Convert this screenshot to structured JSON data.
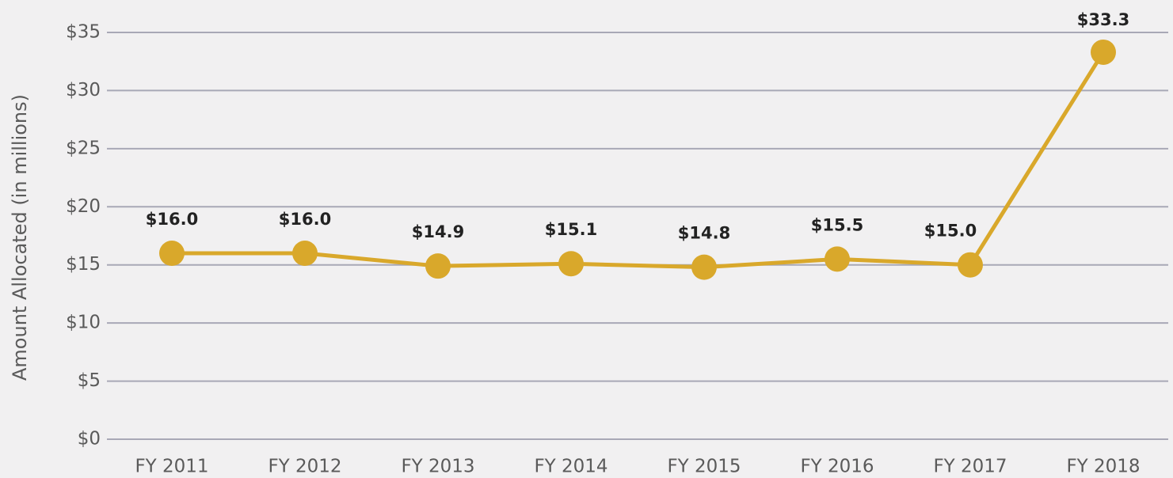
{
  "chart_data": {
    "type": "line",
    "y_label": "Amount Allocated (in millions)",
    "categories": [
      "FY 2011",
      "FY 2012",
      "FY 2013",
      "FY 2014",
      "FY 2015",
      "FY 2016",
      "FY 2017",
      "FY 2018"
    ],
    "series": [
      {
        "name": "Amount Allocated",
        "color": "#d9a82b",
        "values": [
          16.0,
          16.0,
          14.9,
          15.1,
          14.8,
          15.5,
          15.0,
          33.3
        ],
        "value_labels": [
          "$16.0",
          "$16.0",
          "$14.9",
          "$15.1",
          "$14.8",
          "$15.5",
          "$15.0",
          "$33.3"
        ]
      }
    ],
    "ylim": [
      0,
      35
    ],
    "yticks": [
      {
        "value": 0,
        "label": "$0"
      },
      {
        "value": 5,
        "label": "$5"
      },
      {
        "value": 10,
        "label": "$10"
      },
      {
        "value": 15,
        "label": "$15"
      },
      {
        "value": 20,
        "label": "$20"
      },
      {
        "value": 25,
        "label": "$25"
      },
      {
        "value": 30,
        "label": "$30"
      },
      {
        "value": 35,
        "label": "$35"
      }
    ],
    "grid": true
  }
}
